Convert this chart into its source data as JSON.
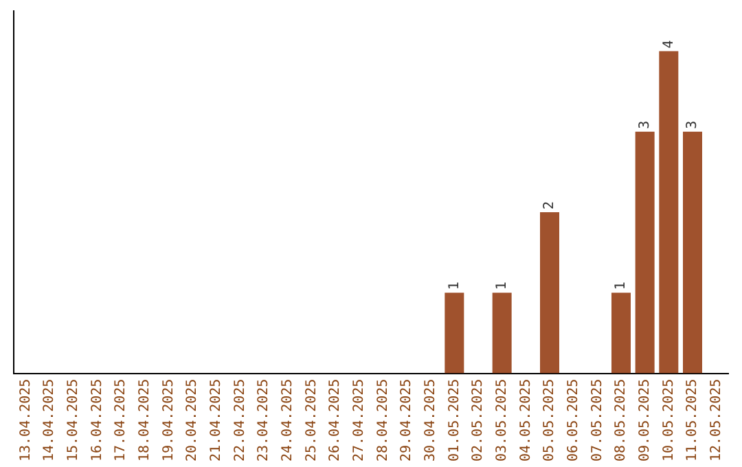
{
  "chart_data": {
    "type": "bar",
    "categories": [
      "13.04.2025",
      "14.04.2025",
      "15.04.2025",
      "16.04.2025",
      "17.04.2025",
      "18.04.2025",
      "19.04.2025",
      "20.04.2025",
      "21.04.2025",
      "22.04.2025",
      "23.04.2025",
      "24.04.2025",
      "25.04.2025",
      "26.04.2025",
      "27.04.2025",
      "28.04.2025",
      "29.04.2025",
      "30.04.2025",
      "01.05.2025",
      "02.05.2025",
      "03.05.2025",
      "04.05.2025",
      "05.05.2025",
      "06.05.2025",
      "07.05.2025",
      "08.05.2025",
      "09.05.2025",
      "10.05.2025",
      "11.05.2025",
      "12.05.2025"
    ],
    "values": [
      null,
      null,
      null,
      null,
      null,
      null,
      null,
      null,
      null,
      null,
      null,
      null,
      null,
      null,
      null,
      null,
      null,
      null,
      1,
      null,
      1,
      null,
      2,
      null,
      null,
      1,
      3,
      4,
      3,
      null
    ],
    "color": "#a0522d",
    "data_labels": true,
    "tick_labels": "x",
    "grid": false,
    "legend": false
  }
}
